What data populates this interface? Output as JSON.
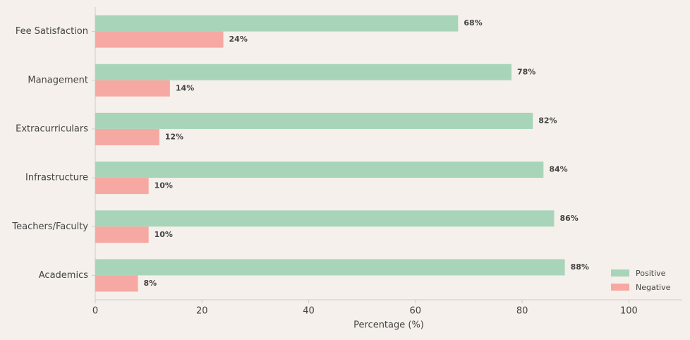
{
  "chart_data": {
    "type": "barh",
    "xlabel": "Percentage (%)",
    "categories": [
      "Fee Satisfaction",
      "Management",
      "Extracurriculars",
      "Infrastructure",
      "Teachers/Faculty",
      "Academics"
    ],
    "series": [
      {
        "name": "Positive",
        "color": "#a8d5ba",
        "values": [
          68,
          78,
          82,
          84,
          86,
          88
        ],
        "value_labels": [
          "68%",
          "78%",
          "82%",
          "84%",
          "86%",
          "88%"
        ]
      },
      {
        "name": "Negative",
        "color": "#f6a8a2",
        "values": [
          24,
          14,
          12,
          10,
          10,
          8
        ],
        "value_labels": [
          "24%",
          "14%",
          "12%",
          "10%",
          "10%",
          "8%"
        ]
      }
    ],
    "xlim": [
      0,
      110
    ],
    "xticks": [
      0,
      20,
      40,
      60,
      80,
      100
    ],
    "grid": false,
    "legend": "lower right"
  }
}
